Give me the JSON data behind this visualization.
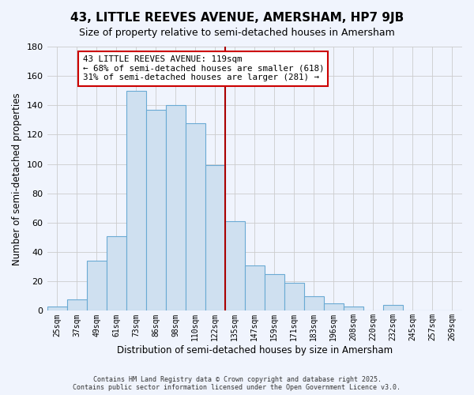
{
  "title": "43, LITTLE REEVES AVENUE, AMERSHAM, HP7 9JB",
  "subtitle": "Size of property relative to semi-detached houses in Amersham",
  "xlabel": "Distribution of semi-detached houses by size in Amersham",
  "ylabel": "Number of semi-detached properties",
  "bin_labels": [
    "25sqm",
    "37sqm",
    "49sqm",
    "61sqm",
    "73sqm",
    "86sqm",
    "98sqm",
    "110sqm",
    "122sqm",
    "135sqm",
    "147sqm",
    "159sqm",
    "171sqm",
    "183sqm",
    "196sqm",
    "208sqm",
    "220sqm",
    "232sqm",
    "245sqm",
    "257sqm",
    "269sqm"
  ],
  "bar_values": [
    3,
    8,
    34,
    51,
    150,
    137,
    140,
    128,
    99,
    61,
    31,
    25,
    19,
    10,
    5,
    3,
    0,
    4,
    0,
    0,
    0
  ],
  "bar_color": "#cfe0f0",
  "bar_edge_color": "#6aaad4",
  "vline_color": "#aa0000",
  "vline_x_pos": 8.5,
  "annotation_title": "43 LITTLE REEVES AVENUE: 119sqm",
  "annotation_line1": "← 68% of semi-detached houses are smaller (618)",
  "annotation_line2": "31% of semi-detached houses are larger (281) →",
  "annotation_box_color": "#ffffff",
  "annotation_box_edge": "#cc0000",
  "ylim": [
    0,
    180
  ],
  "yticks": [
    0,
    20,
    40,
    60,
    80,
    100,
    120,
    140,
    160,
    180
  ],
  "footer1": "Contains HM Land Registry data © Crown copyright and database right 2025.",
  "footer2": "Contains public sector information licensed under the Open Government Licence v3.0.",
  "bg_color": "#f0f4fd",
  "grid_color": "#cccccc",
  "title_fontsize": 11,
  "subtitle_fontsize": 9
}
